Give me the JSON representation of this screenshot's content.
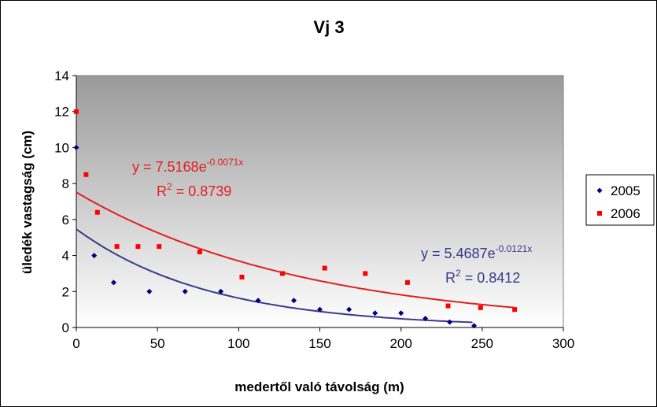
{
  "chart_data": {
    "type": "scatter",
    "title": "Vj 3",
    "xlabel": "medertől való távolság (m)",
    "ylabel": "üledék vastagság (cm)",
    "xlim": [
      0,
      300
    ],
    "ylim": [
      0,
      14
    ],
    "x_ticks": [
      "0",
      "50",
      "100",
      "150",
      "200",
      "250",
      "300"
    ],
    "y_ticks": [
      "0",
      "2",
      "4",
      "6",
      "8",
      "10",
      "12",
      "14"
    ],
    "legend_position": "right",
    "plot_background": "gradient gray-to-white",
    "series": [
      {
        "name": "2005",
        "marker": "diamond",
        "color": "#000080",
        "points": [
          {
            "x": 0,
            "y": 10
          },
          {
            "x": 11,
            "y": 4
          },
          {
            "x": 23,
            "y": 2.5
          },
          {
            "x": 45,
            "y": 2
          },
          {
            "x": 67,
            "y": 2
          },
          {
            "x": 89,
            "y": 2
          },
          {
            "x": 112,
            "y": 1.5
          },
          {
            "x": 134,
            "y": 1.5
          },
          {
            "x": 150,
            "y": 1
          },
          {
            "x": 168,
            "y": 1
          },
          {
            "x": 184,
            "y": 0.8
          },
          {
            "x": 200,
            "y": 0.8
          },
          {
            "x": 215,
            "y": 0.5
          },
          {
            "x": 230,
            "y": 0.3
          },
          {
            "x": 245,
            "y": 0.1
          }
        ],
        "trendline": {
          "type": "exponential",
          "a": 5.4687,
          "b": -0.0121,
          "x_range": [
            0,
            245
          ],
          "color": "#3a3a8c",
          "eq_text": "y = 5.4687e",
          "eq_exp": "-0.0121x",
          "r2_prefix": "R",
          "r2_sup": "2",
          "r2_value": " = 0.8412"
        }
      },
      {
        "name": "2006",
        "marker": "square",
        "color": "#ff0000",
        "points": [
          {
            "x": 0,
            "y": 12
          },
          {
            "x": 6,
            "y": 8.5
          },
          {
            "x": 13,
            "y": 6.4
          },
          {
            "x": 25,
            "y": 4.5
          },
          {
            "x": 38,
            "y": 4.5
          },
          {
            "x": 51,
            "y": 4.5
          },
          {
            "x": 76,
            "y": 4.2
          },
          {
            "x": 102,
            "y": 2.8
          },
          {
            "x": 127,
            "y": 3
          },
          {
            "x": 153,
            "y": 3.3
          },
          {
            "x": 178,
            "y": 3
          },
          {
            "x": 204,
            "y": 2.5
          },
          {
            "x": 229,
            "y": 1.2
          },
          {
            "x": 249,
            "y": 1.1
          },
          {
            "x": 270,
            "y": 1
          }
        ],
        "trendline": {
          "type": "exponential",
          "a": 7.5168,
          "b": -0.0071,
          "x_range": [
            0,
            270
          ],
          "color": "#e02020",
          "eq_text": "y = 7.5168e",
          "eq_exp": "-0.0071x",
          "r2_prefix": "R",
          "r2_sup": "2",
          "r2_value": " = 0.8739"
        }
      }
    ]
  }
}
